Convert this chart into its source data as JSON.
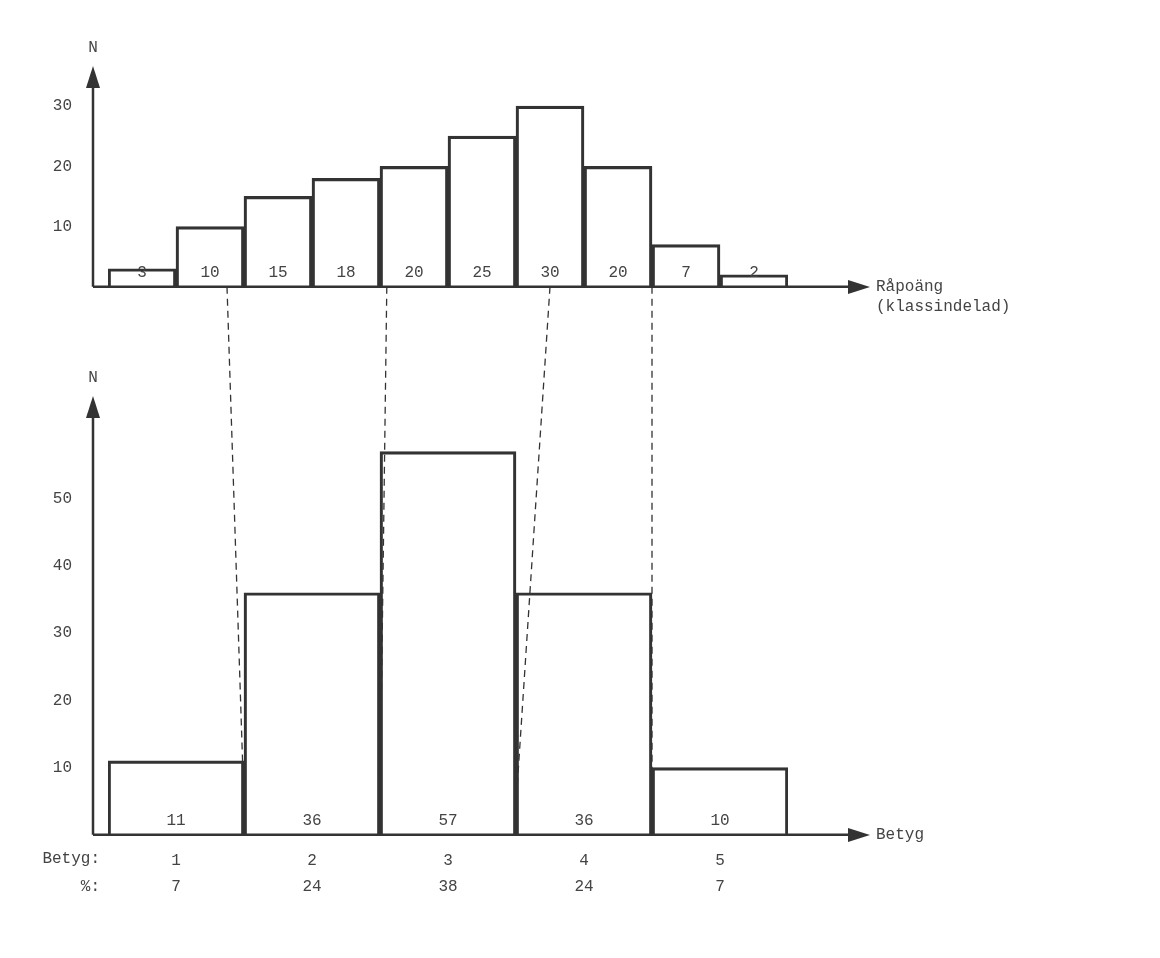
{
  "chart_data": [
    {
      "type": "bar",
      "ylabel": "N",
      "xlabel": "Råpoäng (klassindelad)",
      "categories": [
        null,
        null,
        null,
        null,
        null,
        null,
        null,
        null,
        null,
        null
      ],
      "values": [
        3,
        10,
        15,
        18,
        20,
        25,
        30,
        20,
        7,
        2
      ],
      "color": "#333333",
      "ylim": [
        0,
        33
      ],
      "yticks": [
        10,
        20,
        30
      ],
      "data_labels": true
    },
    {
      "type": "bar",
      "ylabel": "N",
      "xlabel": "Betyg",
      "categories": [
        "1",
        "2",
        "3",
        "4",
        "5"
      ],
      "values": [
        11,
        36,
        57,
        36,
        10
      ],
      "color": "#333333",
      "ylim": [
        0,
        62
      ],
      "yticks": [
        10,
        20,
        30,
        40,
        50
      ],
      "data_labels": true,
      "annotations": [
        "Betyg:",
        "%:",
        "7",
        "24",
        "38",
        "24",
        "7"
      ]
    }
  ]
}
